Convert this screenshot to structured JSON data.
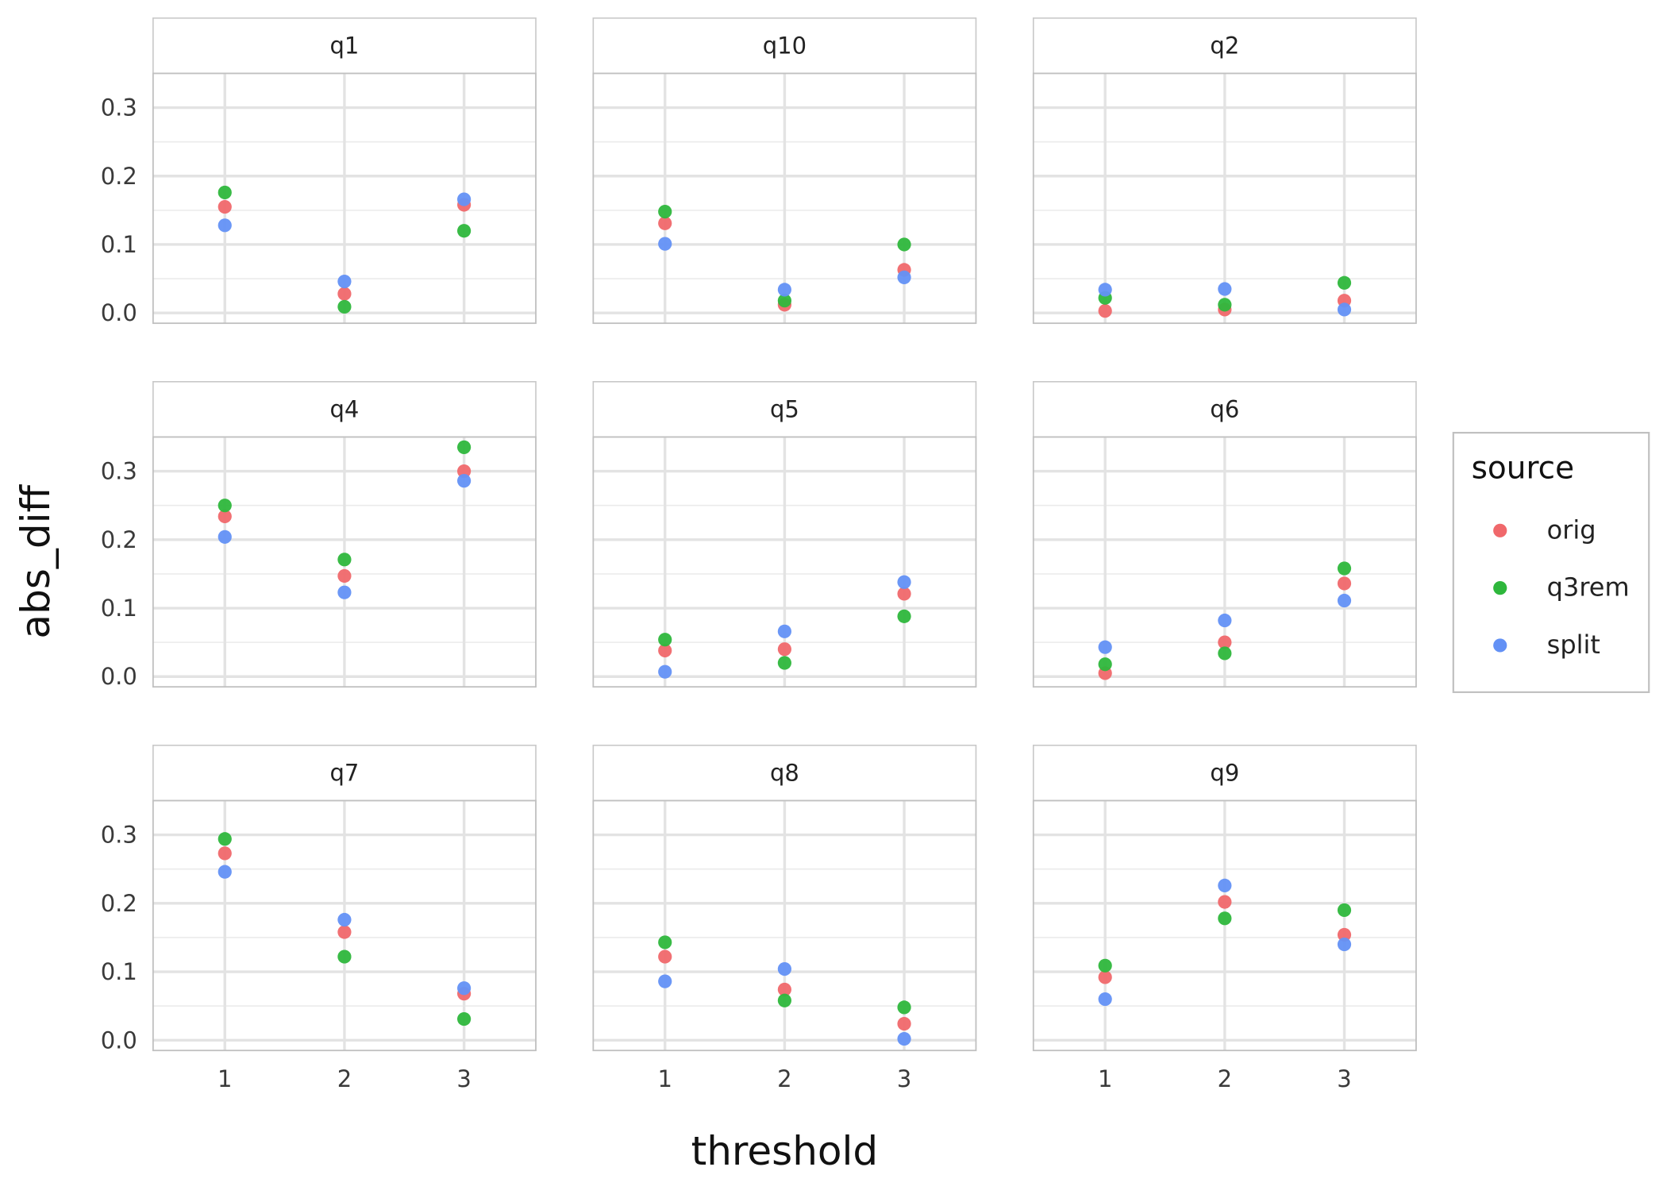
{
  "chart_data": {
    "type": "scatter",
    "facet_layout": "3x3",
    "xlabel": "threshold",
    "ylabel": "abs_diff",
    "x_ticks": [
      "1",
      "2",
      "3"
    ],
    "y_ticks": [
      "0.0",
      "0.1",
      "0.2",
      "0.3"
    ],
    "xlim": [
      0.4,
      3.6
    ],
    "ylim": [
      -0.015,
      0.35
    ],
    "grid": true,
    "legend": {
      "title": "source",
      "position": "right",
      "entries": [
        "orig",
        "q3rem",
        "split"
      ]
    },
    "series_colors": {
      "orig": "#f0686b",
      "q3rem": "#2eb73c",
      "split": "#6391f5"
    },
    "facets": [
      {
        "label": "q1",
        "series": {
          "orig": [
            0.155,
            0.028,
            0.158
          ],
          "q3rem": [
            0.176,
            0.009,
            0.12
          ],
          "split": [
            0.128,
            0.046,
            0.166
          ]
        }
      },
      {
        "label": "q10",
        "series": {
          "orig": [
            0.131,
            0.012,
            0.063
          ],
          "q3rem": [
            0.148,
            0.018,
            0.1
          ],
          "split": [
            0.101,
            0.034,
            0.052
          ]
        }
      },
      {
        "label": "q2",
        "series": {
          "orig": [
            0.003,
            0.005,
            0.018
          ],
          "q3rem": [
            0.022,
            0.012,
            0.044
          ],
          "split": [
            0.034,
            0.035,
            0.005
          ]
        }
      },
      {
        "label": "q4",
        "series": {
          "orig": [
            0.234,
            0.147,
            0.3
          ],
          "q3rem": [
            0.25,
            0.171,
            0.335
          ],
          "split": [
            0.204,
            0.123,
            0.286
          ]
        }
      },
      {
        "label": "q5",
        "series": {
          "orig": [
            0.038,
            0.04,
            0.121
          ],
          "q3rem": [
            0.054,
            0.02,
            0.088
          ],
          "split": [
            0.007,
            0.066,
            0.138
          ]
        }
      },
      {
        "label": "q6",
        "series": {
          "orig": [
            0.005,
            0.05,
            0.136
          ],
          "q3rem": [
            0.018,
            0.034,
            0.158
          ],
          "split": [
            0.043,
            0.082,
            0.111
          ]
        }
      },
      {
        "label": "q7",
        "series": {
          "orig": [
            0.273,
            0.158,
            0.068
          ],
          "q3rem": [
            0.294,
            0.122,
            0.031
          ],
          "split": [
            0.246,
            0.176,
            0.076
          ]
        }
      },
      {
        "label": "q8",
        "series": {
          "orig": [
            0.122,
            0.074,
            0.024
          ],
          "q3rem": [
            0.143,
            0.058,
            0.048
          ],
          "split": [
            0.086,
            0.104,
            0.002
          ]
        }
      },
      {
        "label": "q9",
        "series": {
          "orig": [
            0.092,
            0.202,
            0.154
          ],
          "q3rem": [
            0.109,
            0.178,
            0.19
          ],
          "split": [
            0.06,
            0.226,
            0.14
          ]
        }
      }
    ]
  }
}
